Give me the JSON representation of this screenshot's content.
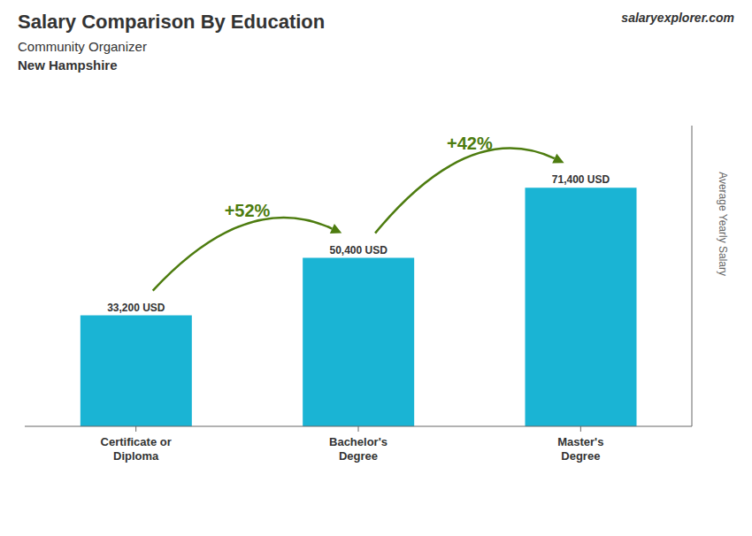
{
  "chart_data": {
    "type": "bar",
    "title": "Salary Comparison By Education",
    "subtitle": "Community Organizer",
    "categories": [
      "Certificate or\nDiploma",
      "Bachelor's\nDegree",
      "Master's\nDegree"
    ],
    "values": [
      33200,
      50400,
      71400
    ],
    "value_labels": [
      "33,200 USD",
      "50,400 USD",
      "71,400 USD"
    ],
    "data_labels": true,
    "y_label": "Average Yearly Salary",
    "ylim": [
      0,
      90000
    ],
    "tick_labels": "x",
    "grid": false,
    "color": "#1ab4d4",
    "annotations": [
      {
        "text": "New Hampshire"
      },
      {
        "text": "salaryexplorer.com"
      },
      {
        "text": "+52%",
        "from": "Certificate or\nDiploma",
        "to": "Bachelor's\nDegree"
      },
      {
        "text": "+42%",
        "from": "Bachelor's\nDegree",
        "to": "Master's\nDegree"
      }
    ]
  }
}
